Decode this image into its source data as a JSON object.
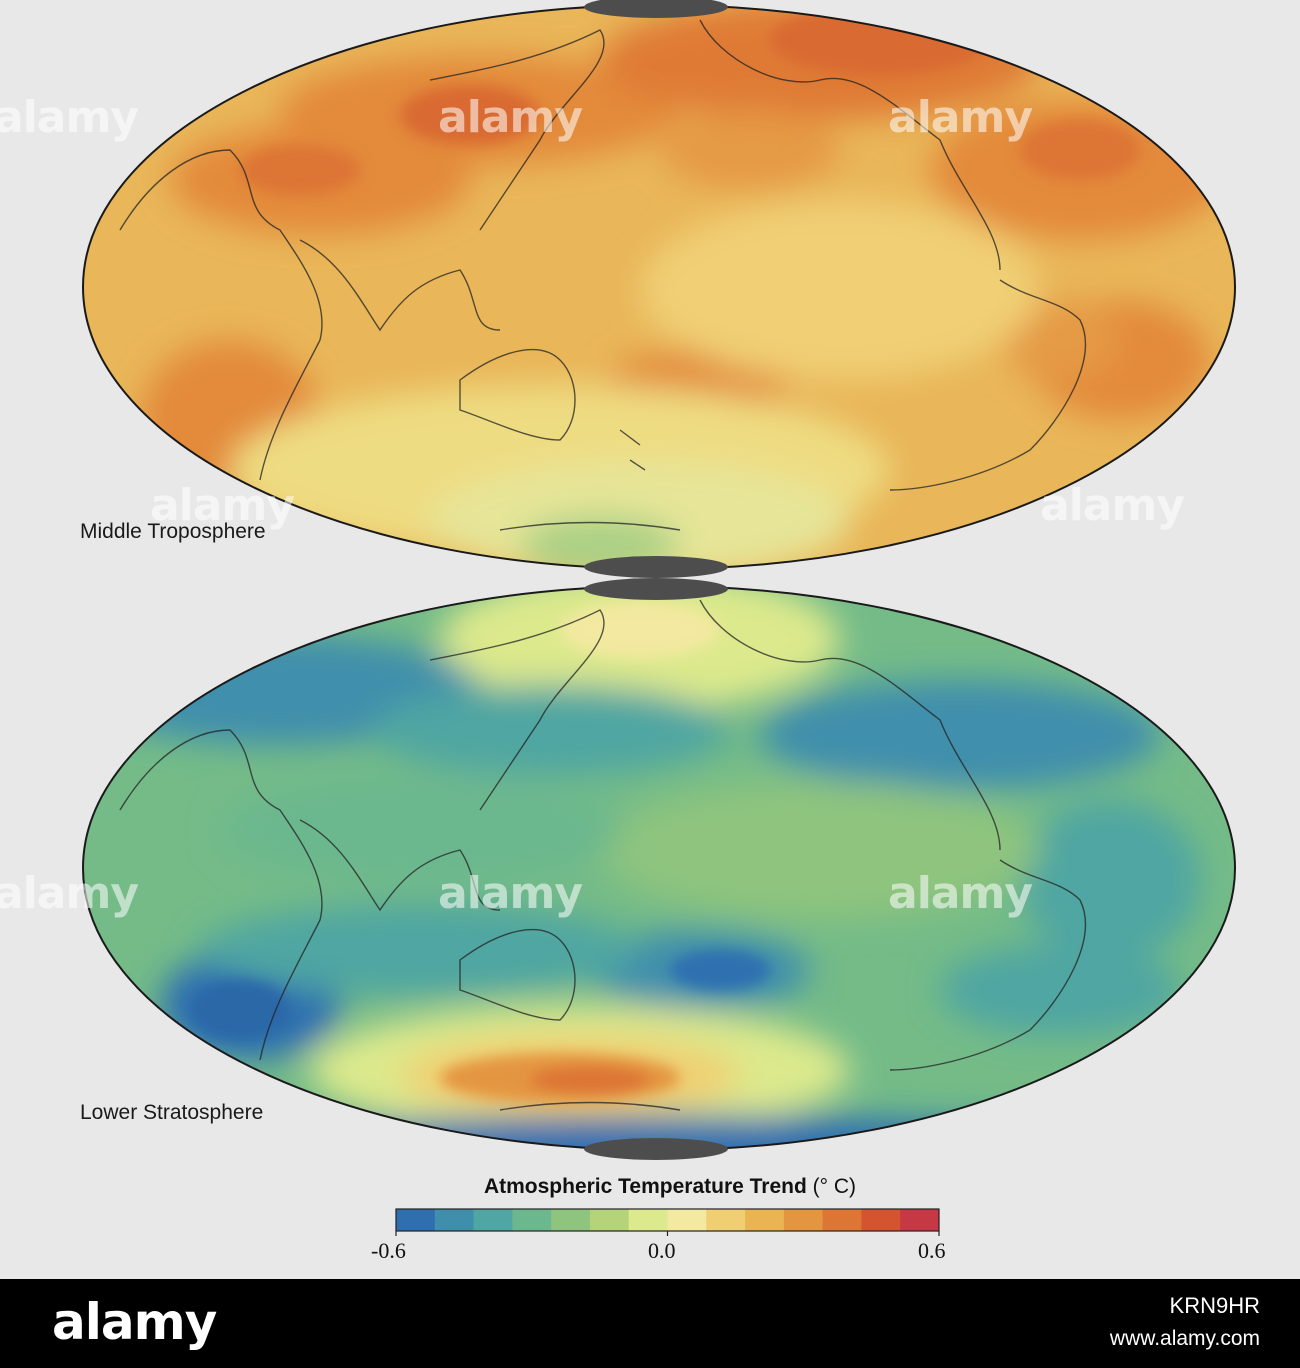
{
  "maps": {
    "top": {
      "label": "Middle Troposphere",
      "mean_trend_c": 0.3,
      "range_c": [
        0.05,
        0.55
      ]
    },
    "bottom": {
      "label": "Lower Stratosphere",
      "mean_trend_c": -0.3,
      "range_c": [
        -0.6,
        0.4
      ]
    }
  },
  "legend": {
    "title": "Atmospheric Temperature Trend",
    "unit": "(° C)",
    "min_label": "-0.6",
    "mid_label": "0.0",
    "max_label": "0.6",
    "range": [
      -0.6,
      0.6
    ],
    "colors": [
      "#2f6fb0",
      "#3f8fac",
      "#4fa6a2",
      "#6cb88e",
      "#8ec47e",
      "#b5d47a",
      "#dce98c",
      "#f3e9a0",
      "#f0cf72",
      "#ebb452",
      "#e49540",
      "#dd7534",
      "#d55430",
      "#c73845"
    ]
  },
  "watermark": {
    "text": "alamy"
  },
  "footer": {
    "brand": "alamy",
    "image_id": "KRN9HR",
    "url": "www.alamy.com"
  }
}
